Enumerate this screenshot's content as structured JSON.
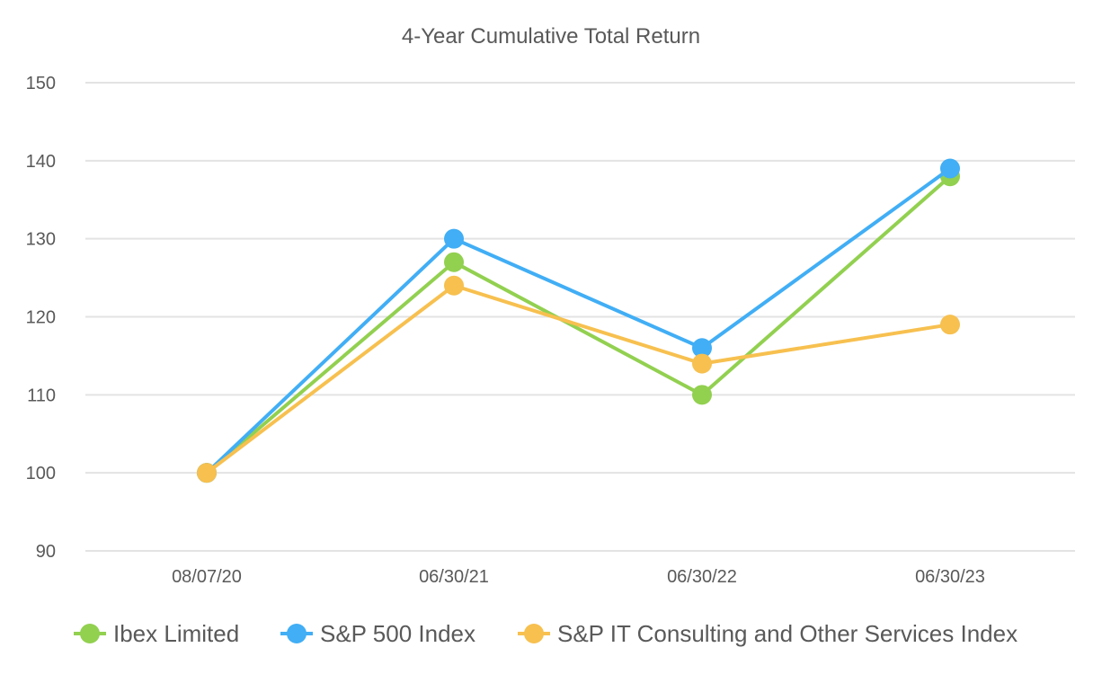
{
  "chart_data": {
    "type": "line",
    "title": "4-Year Cumulative Total Return",
    "xlabel": "",
    "ylabel": "",
    "categories": [
      "08/07/20",
      "06/30/21",
      "06/30/22",
      "06/30/23"
    ],
    "ylim": [
      90,
      150
    ],
    "yticks": [
      90,
      100,
      110,
      120,
      130,
      140,
      150
    ],
    "grid": true,
    "legend_position": "bottom",
    "series": [
      {
        "name": "Ibex Limited",
        "color": "#92d050",
        "values": [
          100,
          127,
          110,
          138
        ]
      },
      {
        "name": "S&P 500 Index",
        "color": "#41aef5",
        "values": [
          100,
          130,
          116,
          139
        ]
      },
      {
        "name": "S&P IT Consulting and Other Services Index",
        "color": "#f7c04f",
        "values": [
          100,
          124,
          114,
          119
        ]
      }
    ]
  }
}
